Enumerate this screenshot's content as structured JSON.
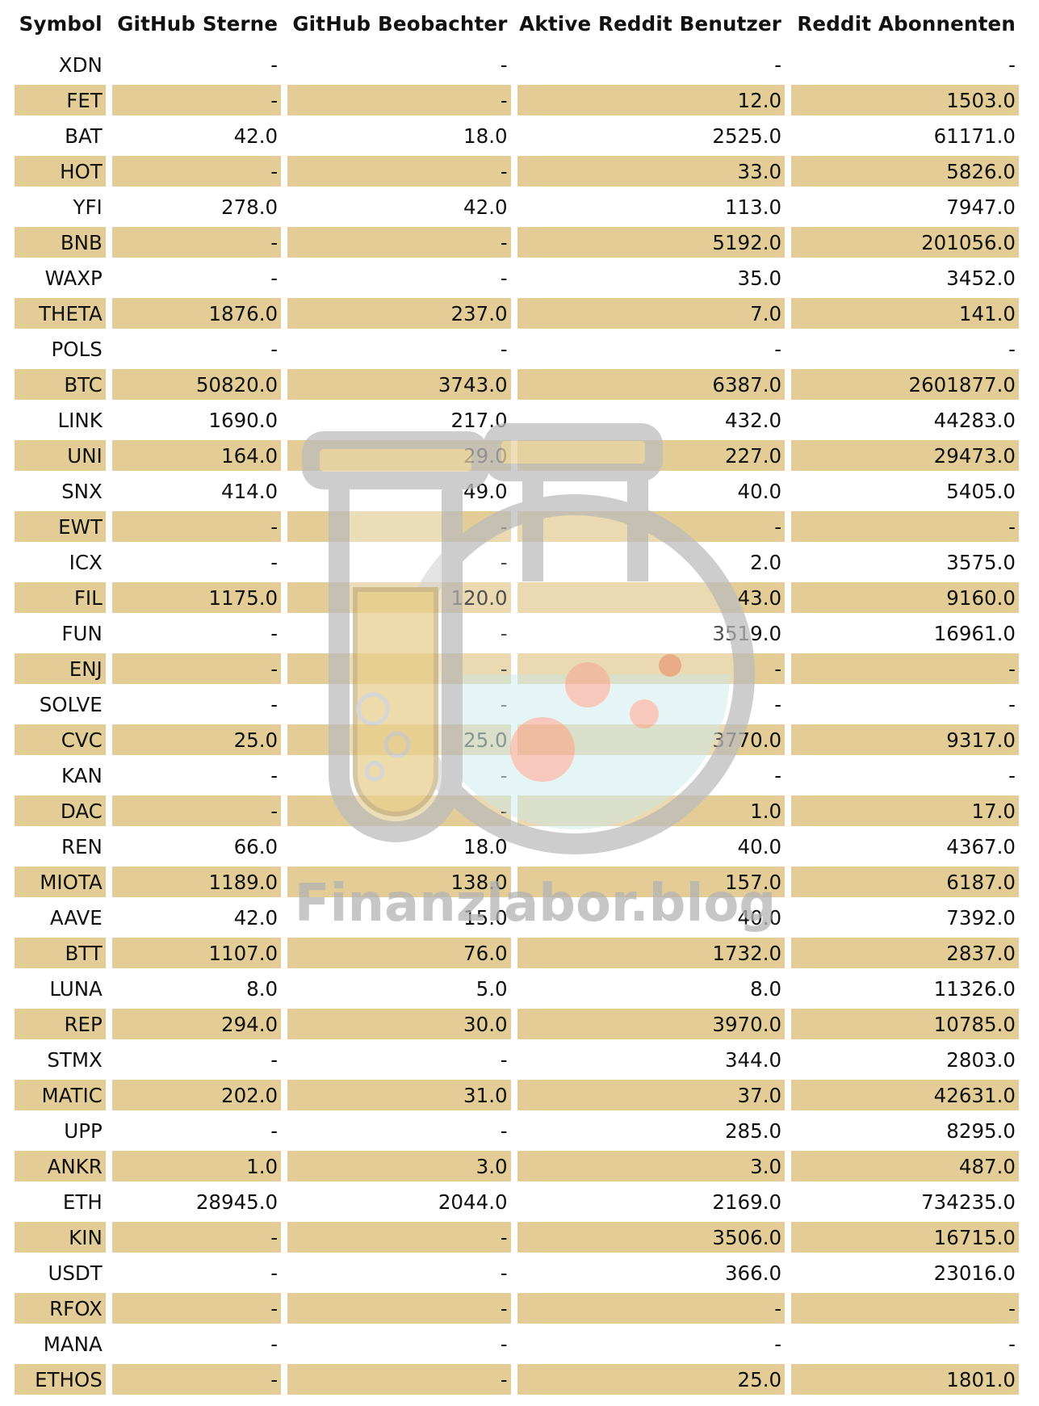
{
  "table": {
    "headers": [
      "Symbol",
      "GitHub Sterne",
      "GitHub Beobachter",
      "Aktive Reddit Benutzer",
      "Reddit Abonnenten"
    ],
    "rows": [
      [
        "XDN",
        "-",
        "-",
        "-",
        "-"
      ],
      [
        "FET",
        "-",
        "-",
        "12.0",
        "1503.0"
      ],
      [
        "BAT",
        "42.0",
        "18.0",
        "2525.0",
        "61171.0"
      ],
      [
        "HOT",
        "-",
        "-",
        "33.0",
        "5826.0"
      ],
      [
        "YFI",
        "278.0",
        "42.0",
        "113.0",
        "7947.0"
      ],
      [
        "BNB",
        "-",
        "-",
        "5192.0",
        "201056.0"
      ],
      [
        "WAXP",
        "-",
        "-",
        "35.0",
        "3452.0"
      ],
      [
        "THETA",
        "1876.0",
        "237.0",
        "7.0",
        "141.0"
      ],
      [
        "POLS",
        "-",
        "-",
        "-",
        "-"
      ],
      [
        "BTC",
        "50820.0",
        "3743.0",
        "6387.0",
        "2601877.0"
      ],
      [
        "LINK",
        "1690.0",
        "217.0",
        "432.0",
        "44283.0"
      ],
      [
        "UNI",
        "164.0",
        "29.0",
        "227.0",
        "29473.0"
      ],
      [
        "SNX",
        "414.0",
        "49.0",
        "40.0",
        "5405.0"
      ],
      [
        "EWT",
        "-",
        "-",
        "-",
        "-"
      ],
      [
        "ICX",
        "-",
        "-",
        "2.0",
        "3575.0"
      ],
      [
        "FIL",
        "1175.0",
        "120.0",
        "43.0",
        "9160.0"
      ],
      [
        "FUN",
        "-",
        "-",
        "3519.0",
        "16961.0"
      ],
      [
        "ENJ",
        "-",
        "-",
        "-",
        "-"
      ],
      [
        "SOLVE",
        "-",
        "-",
        "-",
        "-"
      ],
      [
        "CVC",
        "25.0",
        "25.0",
        "3770.0",
        "9317.0"
      ],
      [
        "KAN",
        "-",
        "-",
        "-",
        "-"
      ],
      [
        "DAC",
        "-",
        "-",
        "1.0",
        "17.0"
      ],
      [
        "REN",
        "66.0",
        "18.0",
        "40.0",
        "4367.0"
      ],
      [
        "MIOTA",
        "1189.0",
        "138.0",
        "157.0",
        "6187.0"
      ],
      [
        "AAVE",
        "42.0",
        "15.0",
        "40.0",
        "7392.0"
      ],
      [
        "BTT",
        "1107.0",
        "76.0",
        "1732.0",
        "2837.0"
      ],
      [
        "LUNA",
        "8.0",
        "5.0",
        "8.0",
        "11326.0"
      ],
      [
        "REP",
        "294.0",
        "30.0",
        "3970.0",
        "10785.0"
      ],
      [
        "STMX",
        "-",
        "-",
        "344.0",
        "2803.0"
      ],
      [
        "MATIC",
        "202.0",
        "31.0",
        "37.0",
        "42631.0"
      ],
      [
        "UPP",
        "-",
        "-",
        "285.0",
        "8295.0"
      ],
      [
        "ANKR",
        "1.0",
        "3.0",
        "3.0",
        "487.0"
      ],
      [
        "ETH",
        "28945.0",
        "2044.0",
        "2169.0",
        "734235.0"
      ],
      [
        "KIN",
        "-",
        "-",
        "3506.0",
        "16715.0"
      ],
      [
        "USDT",
        "-",
        "-",
        "366.0",
        "23016.0"
      ],
      [
        "RFOX",
        "-",
        "-",
        "-",
        "-"
      ],
      [
        "MANA",
        "-",
        "-",
        "-",
        "-"
      ],
      [
        "ETHOS",
        "-",
        "-",
        "25.0",
        "1801.0"
      ]
    ]
  },
  "watermark": {
    "text": "Finanzlabor.blog",
    "icon": "lab-flask-test-tube-icon"
  },
  "colors": {
    "stripe": "#e3cc96",
    "header_text": "#111111",
    "watermark_grey": "#b3b3b3"
  }
}
